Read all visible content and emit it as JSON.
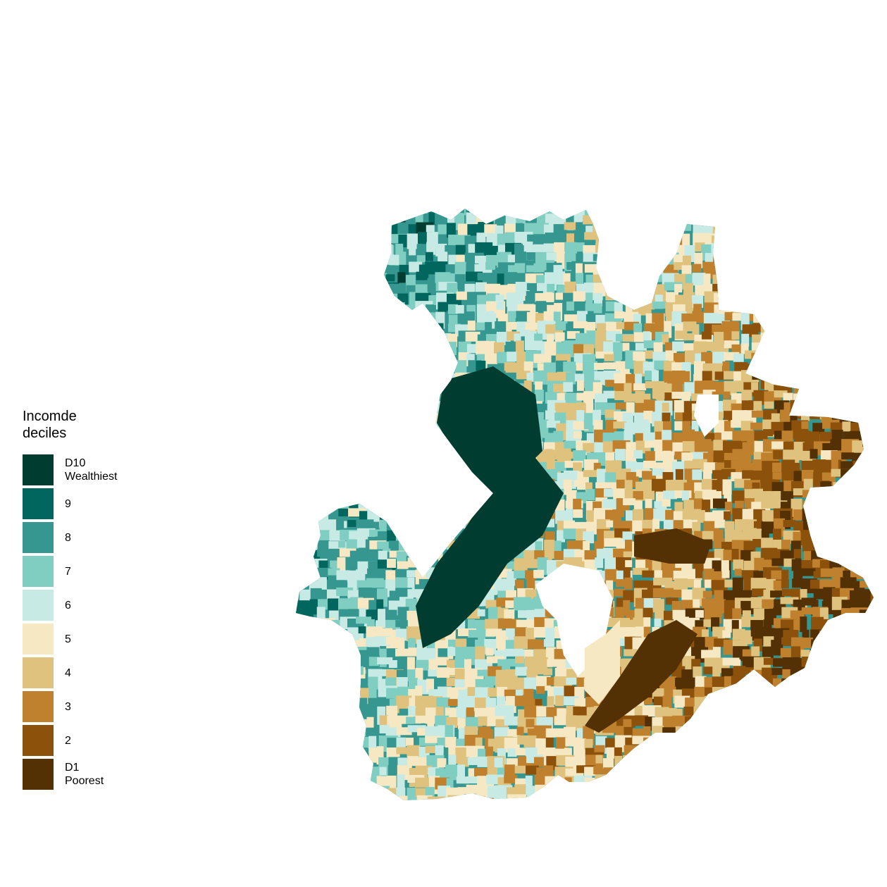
{
  "legend": {
    "title": "Incomde\ndeciles",
    "items": [
      {
        "label": "D10\nWealthiest",
        "color": "#003c30",
        "decile": 10
      },
      {
        "label": "9",
        "color": "#01665e",
        "decile": 9
      },
      {
        "label": "8",
        "color": "#35978f",
        "decile": 8
      },
      {
        "label": "7",
        "color": "#80cdc1",
        "decile": 7
      },
      {
        "label": "6",
        "color": "#c7eae5",
        "decile": 6
      },
      {
        "label": "5",
        "color": "#f6e8c3",
        "decile": 5
      },
      {
        "label": "4",
        "color": "#dfc27d",
        "decile": 4
      },
      {
        "label": "3",
        "color": "#bf812d",
        "decile": 3
      },
      {
        "label": "2",
        "color": "#8c510a",
        "decile": 2
      },
      {
        "label": "D1\nPoorest",
        "color": "#543005",
        "decile": 1
      }
    ]
  }
}
